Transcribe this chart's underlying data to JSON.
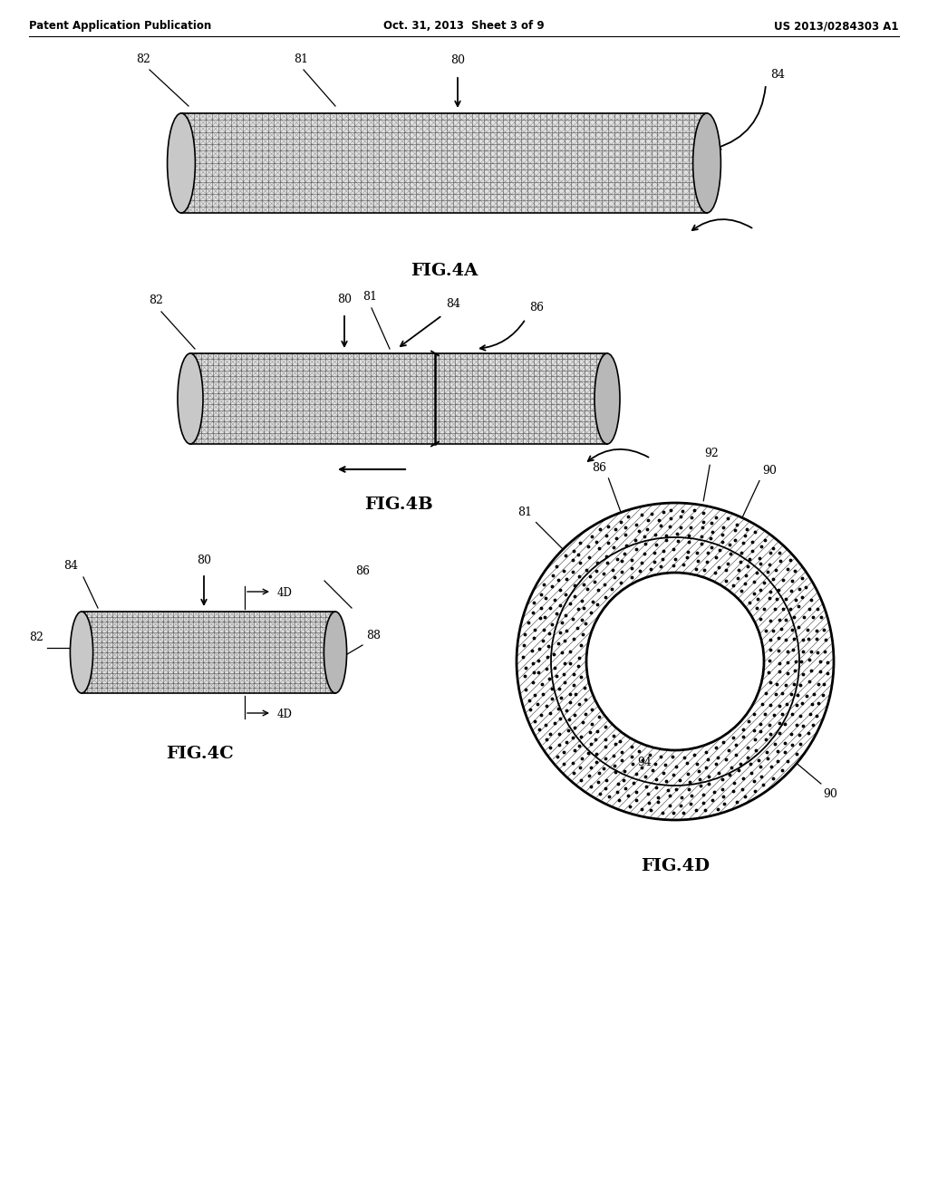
{
  "background_color": "#ffffff",
  "header_left": "Patent Application Publication",
  "header_center": "Oct. 31, 2013  Sheet 3 of 9",
  "header_right": "US 2013/0284303 A1",
  "fig4a_label": "FIG.4A",
  "fig4b_label": "FIG.4B",
  "fig4c_label": "FIG.4C",
  "fig4d_label": "FIG.4D",
  "text_color": "#000000",
  "line_color": "#000000"
}
